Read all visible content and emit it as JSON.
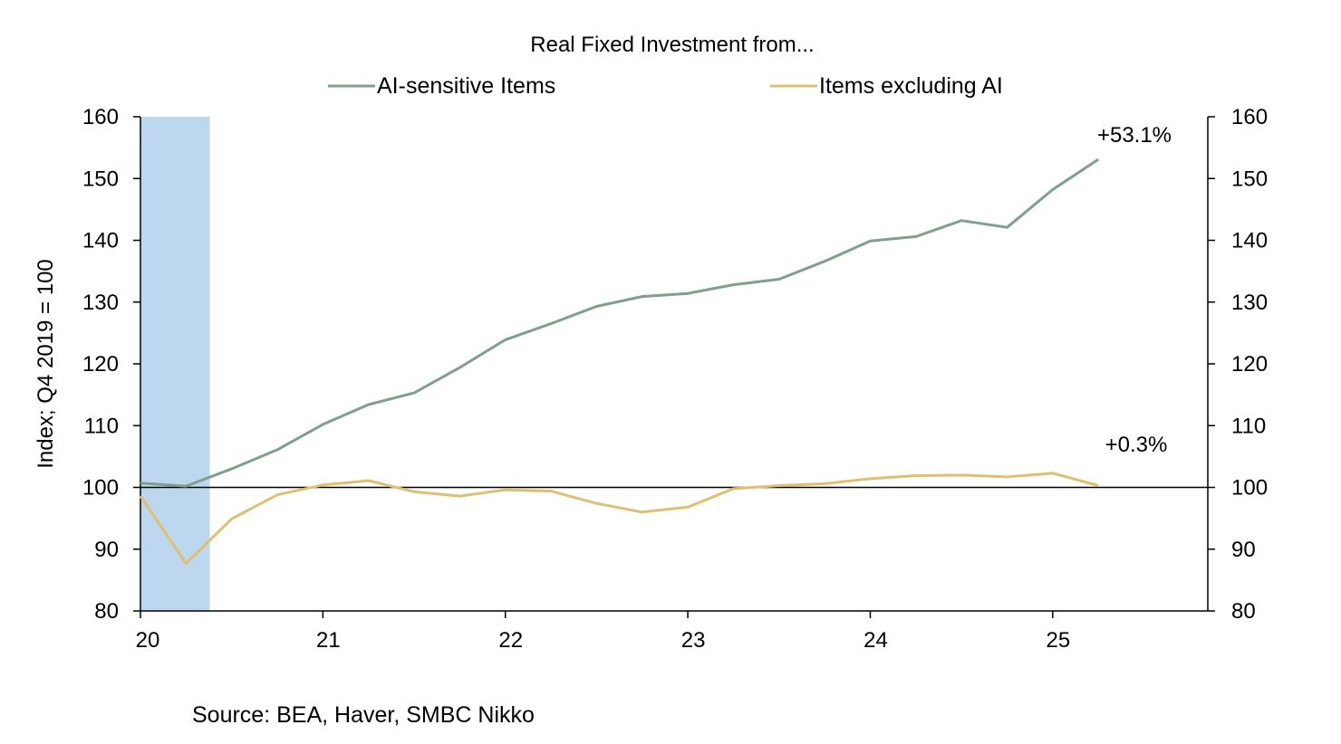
{
  "chart_data": {
    "type": "line",
    "title": "Real Fixed Investment from...",
    "ylabel": "Index;  Q4 2019 = 100",
    "xlabel": "",
    "ylim": [
      80,
      160
    ],
    "yticks": [
      80,
      90,
      100,
      110,
      120,
      130,
      140,
      150,
      160
    ],
    "y2lim": [
      80,
      160
    ],
    "xlim": [
      2020.0,
      2025.85
    ],
    "xtick_values": [
      2020,
      2021,
      2022,
      2023,
      2024,
      2025
    ],
    "xtick_labels": [
      "20",
      "21",
      "22",
      "23",
      "24",
      "25"
    ],
    "reference_line": 100,
    "legend": [
      "AI-sensitive Items",
      "Items excluding AI"
    ],
    "legend_position": "top",
    "shaded_period": {
      "start": 2020.0,
      "end": 2020.38,
      "color": "#bdd7ee"
    },
    "x": [
      2020.0,
      2020.25,
      2020.5,
      2020.75,
      2021.0,
      2021.25,
      2021.5,
      2021.75,
      2022.0,
      2022.25,
      2022.5,
      2022.75,
      2023.0,
      2023.25,
      2023.5,
      2023.75,
      2024.0,
      2024.25,
      2024.5,
      2024.75,
      2025.0,
      2025.25
    ],
    "series": [
      {
        "name": "AI-sensitive Items",
        "color": "#7f9f8f",
        "values": [
          100.7,
          100.2,
          103.0,
          106.1,
          110.2,
          113.4,
          115.3,
          119.4,
          123.9,
          126.5,
          129.3,
          130.9,
          131.4,
          132.8,
          133.7,
          136.6,
          139.9,
          140.6,
          143.2,
          142.1,
          148.2,
          153.1
        ]
      },
      {
        "name": "Items excluding AI",
        "color": "#e0c070",
        "values": [
          98.6,
          87.7,
          94.9,
          98.8,
          100.4,
          101.1,
          99.3,
          98.6,
          99.6,
          99.4,
          97.4,
          96.0,
          96.8,
          99.8,
          100.3,
          100.6,
          101.4,
          101.9,
          102.0,
          101.7,
          102.3,
          100.3
        ]
      }
    ],
    "annotations": [
      "+53.1%",
      "+0.3%"
    ],
    "source": "Source: BEA, Haver, SMBC Nikko"
  }
}
